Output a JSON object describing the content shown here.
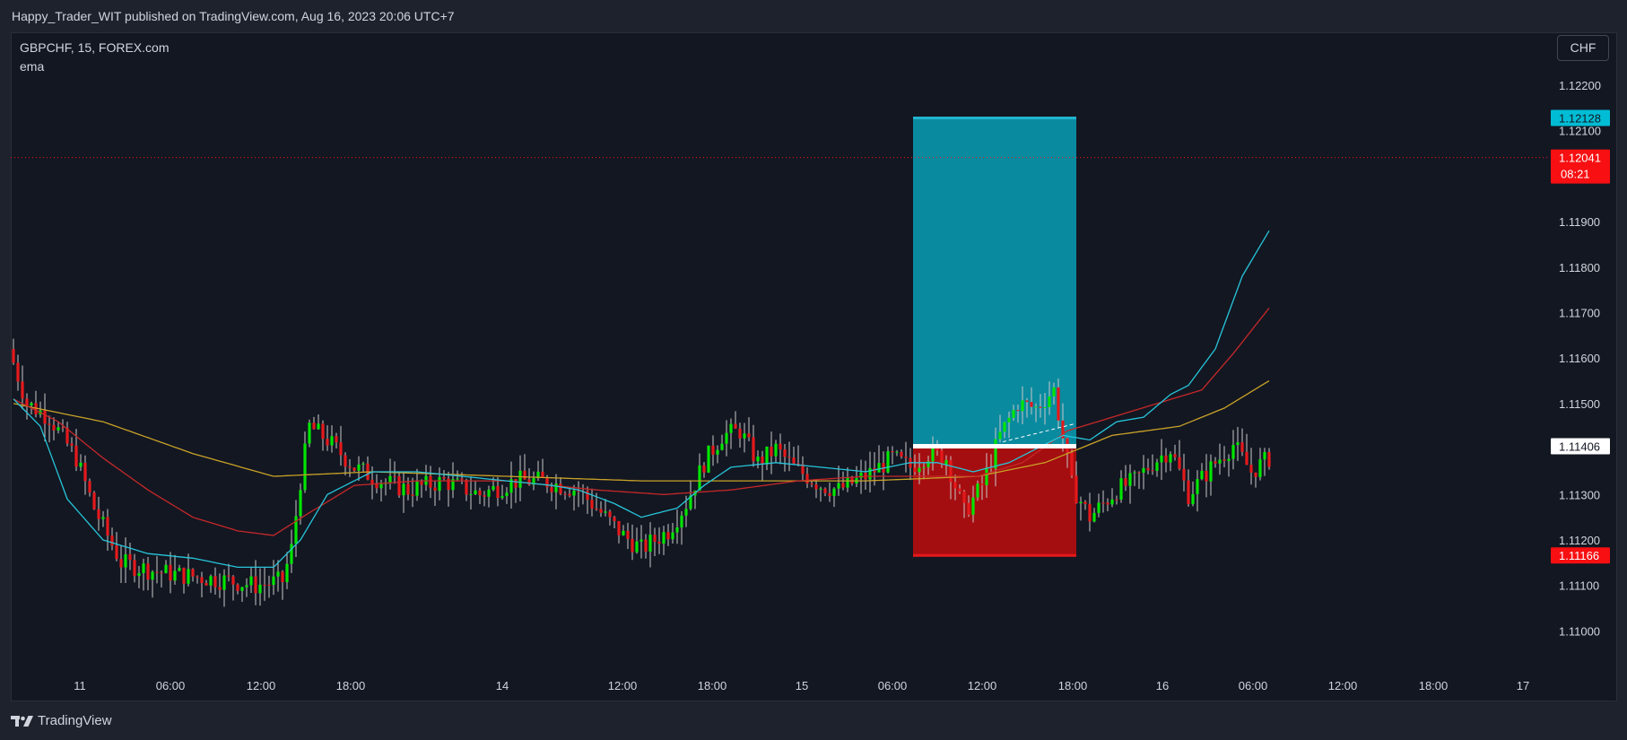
{
  "header": {
    "published": "Happy_Trader_WIT published on TradingView.com, Aug 16, 2023 20:06 UTC+7"
  },
  "legend": {
    "symbol": "GBPCHF, 15, FOREX.com",
    "indicator": "ema"
  },
  "currency_button": "CHF",
  "footer": {
    "brand": "TradingView"
  },
  "colors": {
    "background": "#131722",
    "bull": "#00e600",
    "bear": "#e6191b",
    "ema_fast": "#26c6da",
    "ema_mid": "#c62828",
    "ema_slow": "#c9a227",
    "target_zone": "#0a8a9f",
    "stop_zone": "#a50e10"
  },
  "chart_data": {
    "type": "candlestick",
    "symbol": "GBPCHF",
    "timeframe": "15",
    "ylim": [
      1.1093,
      1.12245
    ],
    "y_ticks": [
      "1.12200",
      "1.12100",
      "1.11900",
      "1.11800",
      "1.11700",
      "1.11600",
      "1.11500",
      "1.11300",
      "1.11200",
      "1.11100",
      "1.11000"
    ],
    "x_ticks": [
      "11",
      "06:00",
      "12:00",
      "18:00",
      "14",
      "12:00",
      "18:00",
      "15",
      "06:00",
      "12:00",
      "18:00",
      "16",
      "06:00",
      "12:00",
      "18:00",
      "17"
    ],
    "price_labels": [
      {
        "text": "1.12128",
        "value": 1.12128,
        "color": "#00bcd4",
        "text_color": "#131722"
      },
      {
        "text": "1.12041",
        "value": 1.12041,
        "color": "#f70f12",
        "text_color": "#ffffff",
        "extra": "08:21"
      },
      {
        "text": "1.11406",
        "value": 1.11406,
        "color": "#ffffff",
        "text_color": "#131722"
      },
      {
        "text": "1.11166",
        "value": 1.11166,
        "color": "#f70f12",
        "text_color": "#ffffff"
      }
    ],
    "last_price": 1.12041,
    "position": {
      "entry": 1.11406,
      "target": 1.12128,
      "stop": 1.11166
    },
    "path": [
      [
        0,
        1.1159
      ],
      [
        3,
        1.115
      ],
      [
        8,
        1.1147
      ],
      [
        14,
        1.1138
      ],
      [
        18,
        1.1127
      ],
      [
        24,
        1.1115
      ],
      [
        32,
        1.1113
      ],
      [
        40,
        1.1112
      ],
      [
        48,
        1.1111
      ],
      [
        54,
        1.111
      ],
      [
        60,
        1.1111
      ],
      [
        62,
        1.1118
      ],
      [
        64,
        1.1133
      ],
      [
        66,
        1.1145
      ],
      [
        70,
        1.1142
      ],
      [
        76,
        1.1136
      ],
      [
        82,
        1.1133
      ],
      [
        88,
        1.1131
      ],
      [
        96,
        1.1133
      ],
      [
        104,
        1.113
      ],
      [
        112,
        1.1133
      ],
      [
        118,
        1.1133
      ],
      [
        126,
        1.1131
      ],
      [
        130,
        1.1127
      ],
      [
        136,
        1.1121
      ],
      [
        140,
        1.1118
      ],
      [
        146,
        1.1122
      ],
      [
        150,
        1.1128
      ],
      [
        154,
        1.1137
      ],
      [
        158,
        1.1143
      ],
      [
        162,
        1.1144
      ],
      [
        166,
        1.1137
      ],
      [
        170,
        1.114
      ],
      [
        174,
        1.1136
      ],
      [
        180,
        1.1132
      ],
      [
        184,
        1.1131
      ],
      [
        190,
        1.1134
      ],
      [
        196,
        1.1138
      ],
      [
        200,
        1.1136
      ],
      [
        204,
        1.1139
      ],
      [
        208,
        1.1138
      ],
      [
        212,
        1.1126
      ],
      [
        216,
        1.1132
      ],
      [
        220,
        1.1143
      ],
      [
        224,
        1.115
      ],
      [
        228,
        1.1149
      ],
      [
        232,
        1.1153
      ],
      [
        236,
        1.1132
      ],
      [
        240,
        1.1125
      ],
      [
        246,
        1.1131
      ],
      [
        250,
        1.1133
      ],
      [
        254,
        1.1137
      ],
      [
        258,
        1.114
      ],
      [
        262,
        1.113
      ],
      [
        268,
        1.1137
      ],
      [
        272,
        1.1141
      ],
      [
        276,
        1.1135
      ],
      [
        280,
        1.1138
      ]
    ],
    "ema_fast": [
      [
        0,
        1.1151
      ],
      [
        6,
        1.1145
      ],
      [
        12,
        1.1129
      ],
      [
        20,
        1.112
      ],
      [
        30,
        1.1117
      ],
      [
        40,
        1.1116
      ],
      [
        50,
        1.1114
      ],
      [
        58,
        1.1114
      ],
      [
        64,
        1.112
      ],
      [
        70,
        1.113
      ],
      [
        80,
        1.1135
      ],
      [
        90,
        1.1135
      ],
      [
        100,
        1.1134
      ],
      [
        110,
        1.1133
      ],
      [
        120,
        1.1132
      ],
      [
        126,
        1.1131
      ],
      [
        134,
        1.1128
      ],
      [
        140,
        1.1125
      ],
      [
        148,
        1.1127
      ],
      [
        154,
        1.1132
      ],
      [
        160,
        1.1136
      ],
      [
        170,
        1.1137
      ],
      [
        180,
        1.1136
      ],
      [
        190,
        1.1135
      ],
      [
        200,
        1.1137
      ],
      [
        206,
        1.1137
      ],
      [
        214,
        1.1135
      ],
      [
        222,
        1.1137
      ],
      [
        228,
        1.114
      ],
      [
        234,
        1.1143
      ],
      [
        240,
        1.1142
      ],
      [
        246,
        1.1146
      ],
      [
        252,
        1.1147
      ],
      [
        258,
        1.1152
      ],
      [
        262,
        1.1154
      ],
      [
        268,
        1.1162
      ],
      [
        274,
        1.1178
      ],
      [
        280,
        1.1188
      ]
    ],
    "ema_mid": [
      [
        0,
        1.1151
      ],
      [
        10,
        1.1146
      ],
      [
        20,
        1.1138
      ],
      [
        30,
        1.1131
      ],
      [
        40,
        1.1125
      ],
      [
        50,
        1.1122
      ],
      [
        58,
        1.1121
      ],
      [
        66,
        1.1126
      ],
      [
        76,
        1.1132
      ],
      [
        90,
        1.1133
      ],
      [
        110,
        1.1133
      ],
      [
        130,
        1.1131
      ],
      [
        145,
        1.113
      ],
      [
        160,
        1.1131
      ],
      [
        175,
        1.1133
      ],
      [
        190,
        1.1134
      ],
      [
        205,
        1.1134
      ],
      [
        215,
        1.1134
      ],
      [
        225,
        1.1137
      ],
      [
        235,
        1.1144
      ],
      [
        245,
        1.1147
      ],
      [
        255,
        1.115
      ],
      [
        265,
        1.1153
      ],
      [
        272,
        1.1161
      ],
      [
        280,
        1.1171
      ]
    ],
    "ema_slow": [
      [
        0,
        1.115
      ],
      [
        20,
        1.1146
      ],
      [
        40,
        1.1139
      ],
      [
        58,
        1.1134
      ],
      [
        80,
        1.1135
      ],
      [
        110,
        1.1134
      ],
      [
        140,
        1.1133
      ],
      [
        165,
        1.1133
      ],
      [
        190,
        1.1133
      ],
      [
        215,
        1.1134
      ],
      [
        230,
        1.1137
      ],
      [
        245,
        1.1143
      ],
      [
        260,
        1.1145
      ],
      [
        270,
        1.1149
      ],
      [
        280,
        1.1155
      ]
    ]
  }
}
